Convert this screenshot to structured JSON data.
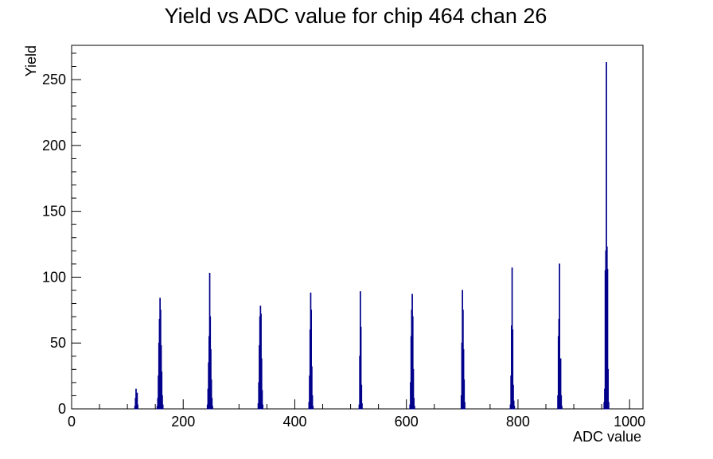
{
  "chart_data": {
    "type": "bar",
    "title": "Yield vs ADC value for chip 464 chan 26",
    "xlabel": "ADC value",
    "ylabel": "Yield",
    "xlim": [
      0,
      1024
    ],
    "ylim": [
      0,
      276
    ],
    "grid": false,
    "legend": "none",
    "x_major_ticks": [
      0,
      200,
      400,
      600,
      800,
      1000
    ],
    "x_tick_labels": [
      "0",
      "200",
      "400",
      "600",
      "800",
      "1000"
    ],
    "y_major_ticks": [
      0,
      50,
      100,
      150,
      200,
      250
    ],
    "y_tick_labels": [
      "0",
      "50",
      "100",
      "150",
      "200",
      "250"
    ],
    "line_color": "#00008b",
    "series": [
      {
        "bins": [
          [
            113,
            2
          ],
          [
            114,
            8
          ],
          [
            115,
            15
          ],
          [
            116,
            10
          ],
          [
            117,
            12
          ],
          [
            118,
            3
          ],
          [
            153,
            2
          ],
          [
            154,
            8
          ],
          [
            155,
            25
          ],
          [
            156,
            50
          ],
          [
            157,
            68
          ],
          [
            158,
            84
          ],
          [
            159,
            75
          ],
          [
            160,
            48
          ],
          [
            161,
            28
          ],
          [
            162,
            10
          ],
          [
            163,
            3
          ],
          [
            243,
            3
          ],
          [
            244,
            15
          ],
          [
            245,
            35
          ],
          [
            246,
            55
          ],
          [
            247,
            103
          ],
          [
            248,
            70
          ],
          [
            249,
            45
          ],
          [
            250,
            22
          ],
          [
            251,
            8
          ],
          [
            252,
            2
          ],
          [
            334,
            4
          ],
          [
            335,
            20
          ],
          [
            336,
            48
          ],
          [
            337,
            70
          ],
          [
            338,
            78
          ],
          [
            339,
            72
          ],
          [
            340,
            38
          ],
          [
            341,
            14
          ],
          [
            342,
            3
          ],
          [
            425,
            5
          ],
          [
            426,
            25
          ],
          [
            427,
            60
          ],
          [
            428,
            88
          ],
          [
            429,
            75
          ],
          [
            430,
            32
          ],
          [
            431,
            10
          ],
          [
            432,
            2
          ],
          [
            515,
            3
          ],
          [
            516,
            40
          ],
          [
            517,
            89
          ],
          [
            518,
            62
          ],
          [
            519,
            18
          ],
          [
            520,
            4
          ],
          [
            606,
            3
          ],
          [
            607,
            20
          ],
          [
            608,
            55
          ],
          [
            609,
            75
          ],
          [
            610,
            87
          ],
          [
            611,
            70
          ],
          [
            612,
            30
          ],
          [
            613,
            8
          ],
          [
            614,
            2
          ],
          [
            698,
            10
          ],
          [
            699,
            50
          ],
          [
            700,
            90
          ],
          [
            701,
            75
          ],
          [
            702,
            45
          ],
          [
            703,
            22
          ],
          [
            704,
            5
          ],
          [
            786,
            3
          ],
          [
            787,
            25
          ],
          [
            788,
            63
          ],
          [
            789,
            107
          ],
          [
            790,
            60
          ],
          [
            791,
            18
          ],
          [
            792,
            6
          ],
          [
            793,
            2
          ],
          [
            871,
            10
          ],
          [
            872,
            55
          ],
          [
            873,
            68
          ],
          [
            874,
            110
          ],
          [
            875,
            25
          ],
          [
            876,
            38
          ],
          [
            877,
            10
          ],
          [
            878,
            2
          ],
          [
            954,
            5
          ],
          [
            955,
            15
          ],
          [
            956,
            105
          ],
          [
            957,
            120
          ],
          [
            958,
            263
          ],
          [
            959,
            123
          ],
          [
            960,
            106
          ],
          [
            961,
            30
          ],
          [
            962,
            5
          ]
        ]
      }
    ]
  }
}
